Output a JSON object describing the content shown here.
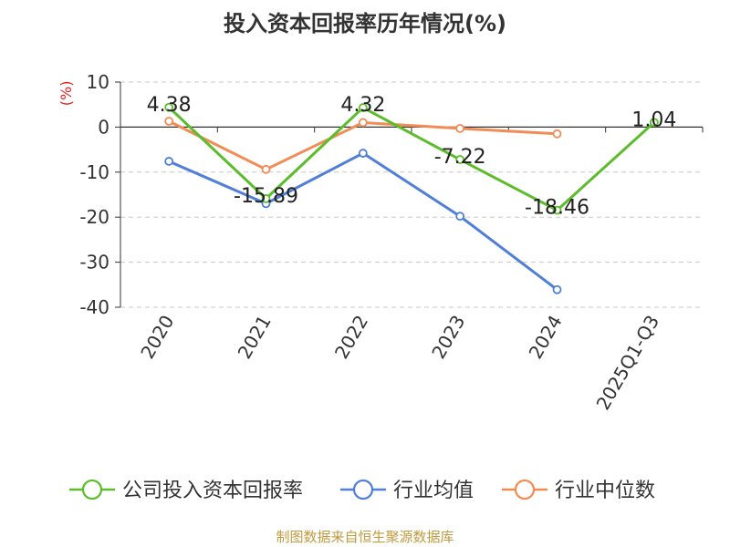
{
  "chart_data": {
    "type": "line",
    "title": "投入资本回报率历年情况(%)",
    "ylabel": "(%)",
    "xlabel": "",
    "categories": [
      "2020",
      "2021",
      "2022",
      "2023",
      "2024",
      "2025Q1-Q3"
    ],
    "ylim": [
      -40,
      10
    ],
    "yticks": [
      10,
      0,
      -10,
      -20,
      -30,
      -40
    ],
    "grid": true,
    "legend_position": "bottom",
    "series": [
      {
        "name": "公司投入资本回报率",
        "color": "#5bbd2b",
        "values": [
          4.38,
          -15.89,
          4.32,
          -7.22,
          -18.46,
          1.04
        ],
        "labels": [
          "4.38",
          "-15.89",
          "4.32",
          "-7.22",
          "-18.46",
          "1.04"
        ]
      },
      {
        "name": "行业均值",
        "color": "#4f7fd9",
        "values": [
          -7.6,
          -17.0,
          -5.8,
          -19.8,
          -36.1,
          null
        ]
      },
      {
        "name": "行业中位数",
        "color": "#f28c55",
        "values": [
          1.3,
          -9.4,
          1.0,
          -0.3,
          -1.5,
          null
        ]
      }
    ],
    "source": "制图数据来自恒生聚源数据库"
  }
}
